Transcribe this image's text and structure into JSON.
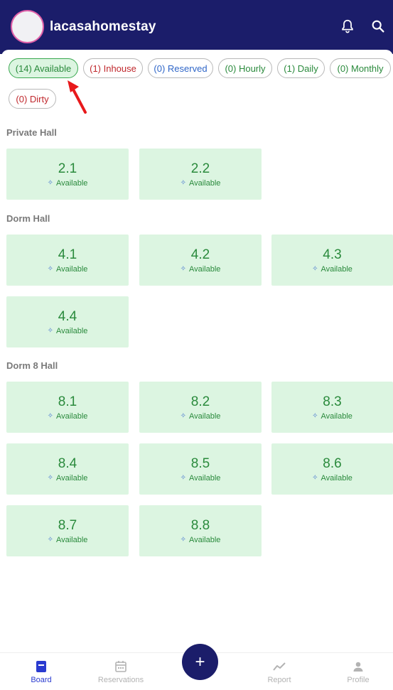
{
  "header": {
    "title": "lacasahomestay",
    "notification_icon": "bell-icon",
    "search_icon": "search-icon"
  },
  "filters": [
    {
      "label": "(14) Available",
      "color": "#2a8a3c",
      "selected": true
    },
    {
      "label": "(1) Inhouse",
      "color": "#c0282d",
      "selected": false
    },
    {
      "label": "(0) Reserved",
      "color": "#2f66c8",
      "selected": false
    },
    {
      "label": "(0) Hourly",
      "color": "#2a8a3c",
      "selected": false
    },
    {
      "label": "(1) Daily",
      "color": "#2a8a3c",
      "selected": false
    },
    {
      "label": "(0) Monthly",
      "color": "#2a8a3c",
      "selected": false
    },
    {
      "label": "(0) Dirty",
      "color": "#c0282d",
      "selected": false
    }
  ],
  "sections": [
    {
      "title": "Private Hall",
      "rooms": [
        {
          "number": "2.1",
          "status": "Available"
        },
        {
          "number": "2.2",
          "status": "Available"
        }
      ]
    },
    {
      "title": "Dorm Hall",
      "rooms": [
        {
          "number": "4.1",
          "status": "Available"
        },
        {
          "number": "4.2",
          "status": "Available"
        },
        {
          "number": "4.3",
          "status": "Available"
        },
        {
          "number": "4.4",
          "status": "Available"
        }
      ]
    },
    {
      "title": "Dorm 8 Hall",
      "rooms": [
        {
          "number": "8.1",
          "status": "Available"
        },
        {
          "number": "8.2",
          "status": "Available"
        },
        {
          "number": "8.3",
          "status": "Available"
        },
        {
          "number": "8.4",
          "status": "Available"
        },
        {
          "number": "8.5",
          "status": "Available"
        },
        {
          "number": "8.6",
          "status": "Available"
        },
        {
          "number": "8.7",
          "status": "Available"
        },
        {
          "number": "8.8",
          "status": "Available"
        }
      ]
    }
  ],
  "bottom_nav": {
    "items": [
      {
        "label": "Board",
        "icon": "board-icon",
        "active": true
      },
      {
        "label": "Reservations",
        "icon": "calendar-icon",
        "active": false
      },
      {
        "label": "Report",
        "icon": "chart-line-icon",
        "active": false
      },
      {
        "label": "Profile",
        "icon": "person-icon",
        "active": false
      }
    ],
    "fab_label": "+"
  },
  "colors": {
    "brand": "#1b1d6a",
    "available_bg": "#dcf5e1",
    "available_text": "#2a8a3c",
    "nav_active": "#2a3bd0"
  }
}
